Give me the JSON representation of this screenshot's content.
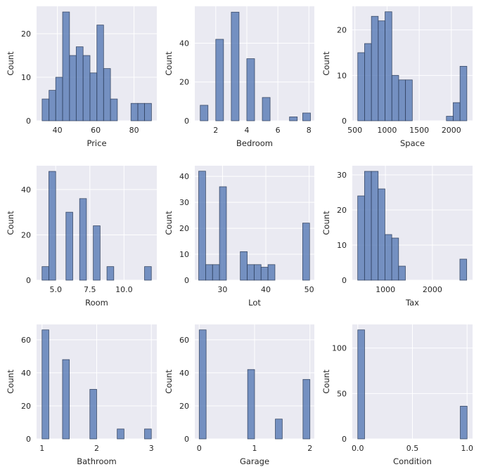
{
  "figure": {
    "background": "#ffffff",
    "axes_background": "#eaeaf2",
    "grid_color": "#ffffff",
    "bar_color": "#4c72b0",
    "bar_edge_color": "#2f3f5c"
  },
  "chart_data": [
    {
      "type": "bar",
      "xlabel": "Price",
      "ylabel": "Count",
      "xlim": [
        29.1,
        91.9
      ],
      "ylim": [
        0,
        26.3
      ],
      "xticks": [
        40,
        60,
        80
      ],
      "xtick_labels": [
        "40",
        "60",
        "80"
      ],
      "yticks": [
        0,
        10,
        20
      ],
      "ytick_labels": [
        "0",
        "10",
        "20"
      ],
      "bins": [
        {
          "x0": 32.0,
          "x1": 35.6,
          "count": 5
        },
        {
          "x0": 35.6,
          "x1": 39.1,
          "count": 7
        },
        {
          "x0": 39.1,
          "x1": 42.7,
          "count": 10
        },
        {
          "x0": 42.7,
          "x1": 46.3,
          "count": 25
        },
        {
          "x0": 46.3,
          "x1": 49.8,
          "count": 15
        },
        {
          "x0": 49.8,
          "x1": 53.4,
          "count": 17
        },
        {
          "x0": 53.4,
          "x1": 57.0,
          "count": 15
        },
        {
          "x0": 57.0,
          "x1": 60.6,
          "count": 11
        },
        {
          "x0": 60.6,
          "x1": 64.1,
          "count": 22
        },
        {
          "x0": 64.1,
          "x1": 67.7,
          "count": 12
        },
        {
          "x0": 67.7,
          "x1": 71.3,
          "count": 5
        },
        {
          "x0": 71.3,
          "x1": 74.8,
          "count": 0
        },
        {
          "x0": 74.8,
          "x1": 78.4,
          "count": 0
        },
        {
          "x0": 78.4,
          "x1": 82.0,
          "count": 4
        },
        {
          "x0": 82.0,
          "x1": 85.5,
          "count": 4
        },
        {
          "x0": 85.5,
          "x1": 89.1,
          "count": 4
        }
      ]
    },
    {
      "type": "bar",
      "xlabel": "Bedroom",
      "ylabel": "Count",
      "xlim": [
        0.65,
        8.35
      ],
      "ylim": [
        0,
        59
      ],
      "xticks": [
        2,
        4,
        6,
        8
      ],
      "xtick_labels": [
        "2",
        "4",
        "6",
        "8"
      ],
      "yticks": [
        0,
        20,
        40
      ],
      "ytick_labels": [
        "0",
        "20",
        "40"
      ],
      "bins": [
        {
          "x0": 1.0,
          "x1": 1.5,
          "count": 8
        },
        {
          "x0": 2.0,
          "x1": 2.5,
          "count": 42
        },
        {
          "x0": 3.0,
          "x1": 3.5,
          "count": 56
        },
        {
          "x0": 4.0,
          "x1": 4.5,
          "count": 32
        },
        {
          "x0": 5.0,
          "x1": 5.5,
          "count": 12
        },
        {
          "x0": 6.75,
          "x1": 7.25,
          "count": 2
        },
        {
          "x0": 7.6,
          "x1": 8.1,
          "count": 4
        }
      ]
    },
    {
      "type": "bar",
      "xlabel": "Space",
      "ylabel": "Count",
      "xlim": [
        460,
        2330
      ],
      "ylim": [
        0,
        25.2
      ],
      "xticks": [
        500,
        1000,
        1500,
        2000
      ],
      "xtick_labels": [
        "500",
        "1000",
        "1500",
        "2000"
      ],
      "yticks": [
        0,
        10,
        20
      ],
      "ytick_labels": [
        "0",
        "10",
        "20"
      ],
      "bins": [
        {
          "x0": 545,
          "x1": 651,
          "count": 15
        },
        {
          "x0": 651,
          "x1": 757,
          "count": 17
        },
        {
          "x0": 757,
          "x1": 863,
          "count": 23
        },
        {
          "x0": 863,
          "x1": 969,
          "count": 22
        },
        {
          "x0": 969,
          "x1": 1075,
          "count": 24
        },
        {
          "x0": 1075,
          "x1": 1181,
          "count": 10
        },
        {
          "x0": 1181,
          "x1": 1287,
          "count": 9
        },
        {
          "x0": 1287,
          "x1": 1393,
          "count": 9
        },
        {
          "x0": 1393,
          "x1": 1499,
          "count": 0
        },
        {
          "x0": 1499,
          "x1": 1605,
          "count": 0
        },
        {
          "x0": 1605,
          "x1": 1711,
          "count": 0
        },
        {
          "x0": 1711,
          "x1": 1817,
          "count": 0
        },
        {
          "x0": 1817,
          "x1": 1923,
          "count": 0
        },
        {
          "x0": 1923,
          "x1": 2029,
          "count": 1
        },
        {
          "x0": 2029,
          "x1": 2135,
          "count": 4
        },
        {
          "x0": 2135,
          "x1": 2241,
          "count": 12
        }
      ]
    },
    {
      "type": "bar",
      "xlabel": "Room",
      "ylabel": "Count",
      "xlim": [
        3.6,
        12.4
      ],
      "ylim": [
        0,
        50.5
      ],
      "xticks": [
        5.0,
        7.5,
        10.0
      ],
      "xtick_labels": [
        "5.0",
        "7.5",
        "10.0"
      ],
      "yticks": [
        0,
        20,
        40
      ],
      "ytick_labels": [
        "0",
        "20",
        "40"
      ],
      "bins": [
        {
          "x0": 4.0,
          "x1": 4.5,
          "count": 6
        },
        {
          "x0": 4.5,
          "x1": 5.0,
          "count": 48
        },
        {
          "x0": 5.75,
          "x1": 6.25,
          "count": 30
        },
        {
          "x0": 6.75,
          "x1": 7.25,
          "count": 36
        },
        {
          "x0": 7.75,
          "x1": 8.25,
          "count": 24
        },
        {
          "x0": 8.75,
          "x1": 9.25,
          "count": 6
        },
        {
          "x0": 11.5,
          "x1": 12.0,
          "count": 6
        }
      ]
    },
    {
      "type": "bar",
      "xlabel": "Lot",
      "ylabel": "Count",
      "xlim": [
        23.6,
        51.2
      ],
      "ylim": [
        0,
        44.1
      ],
      "xticks": [
        30,
        40,
        50
      ],
      "xtick_labels": [
        "30",
        "40",
        "50"
      ],
      "yticks": [
        0,
        10,
        20,
        30,
        40
      ],
      "ytick_labels": [
        "0",
        "10",
        "20",
        "30",
        "40"
      ],
      "bins": [
        {
          "x0": 24.5,
          "x1": 26.1,
          "count": 42
        },
        {
          "x0": 26.1,
          "x1": 27.7,
          "count": 6
        },
        {
          "x0": 27.7,
          "x1": 29.3,
          "count": 6
        },
        {
          "x0": 29.3,
          "x1": 30.9,
          "count": 36
        },
        {
          "x0": 30.9,
          "x1": 32.5,
          "count": 0
        },
        {
          "x0": 32.5,
          "x1": 34.1,
          "count": 0
        },
        {
          "x0": 34.1,
          "x1": 35.7,
          "count": 11
        },
        {
          "x0": 35.7,
          "x1": 37.3,
          "count": 6
        },
        {
          "x0": 37.3,
          "x1": 38.9,
          "count": 6
        },
        {
          "x0": 38.9,
          "x1": 40.5,
          "count": 5
        },
        {
          "x0": 40.5,
          "x1": 42.1,
          "count": 6
        },
        {
          "x0": 42.1,
          "x1": 43.7,
          "count": 0
        },
        {
          "x0": 43.7,
          "x1": 45.3,
          "count": 0
        },
        {
          "x0": 45.3,
          "x1": 46.9,
          "count": 0
        },
        {
          "x0": 46.9,
          "x1": 48.5,
          "count": 0
        },
        {
          "x0": 48.5,
          "x1": 50.1,
          "count": 22
        }
      ]
    },
    {
      "type": "bar",
      "xlabel": "Tax",
      "ylabel": "Count",
      "xlim": [
        295,
        2855
      ],
      "ylim": [
        0,
        32.6
      ],
      "xticks": [
        1000,
        2000
      ],
      "xtick_labels": [
        "1000",
        "2000"
      ],
      "yticks": [
        0,
        10,
        20,
        30
      ],
      "ytick_labels": [
        "0",
        "10",
        "20",
        "30"
      ],
      "bins": [
        {
          "x0": 410,
          "x1": 555,
          "count": 24
        },
        {
          "x0": 555,
          "x1": 700,
          "count": 31
        },
        {
          "x0": 700,
          "x1": 845,
          "count": 31
        },
        {
          "x0": 845,
          "x1": 990,
          "count": 26
        },
        {
          "x0": 990,
          "x1": 1135,
          "count": 13
        },
        {
          "x0": 1135,
          "x1": 1280,
          "count": 12
        },
        {
          "x0": 1280,
          "x1": 1425,
          "count": 4
        },
        {
          "x0": 1425,
          "x1": 1570,
          "count": 0
        },
        {
          "x0": 1570,
          "x1": 1715,
          "count": 0
        },
        {
          "x0": 1715,
          "x1": 1860,
          "count": 0
        },
        {
          "x0": 1860,
          "x1": 2005,
          "count": 0
        },
        {
          "x0": 2005,
          "x1": 2150,
          "count": 0
        },
        {
          "x0": 2150,
          "x1": 2295,
          "count": 0
        },
        {
          "x0": 2295,
          "x1": 2440,
          "count": 0
        },
        {
          "x0": 2440,
          "x1": 2585,
          "count": 0
        },
        {
          "x0": 2585,
          "x1": 2730,
          "count": 6
        }
      ]
    },
    {
      "type": "bar",
      "xlabel": "Bathroom",
      "ylabel": "Count",
      "xlim": [
        0.9,
        3.1
      ],
      "ylim": [
        0,
        69.3
      ],
      "xticks": [
        1,
        2,
        3
      ],
      "xtick_labels": [
        "1",
        "2",
        "3"
      ],
      "yticks": [
        0,
        20,
        40,
        60
      ],
      "ytick_labels": [
        "0",
        "20",
        "40",
        "60"
      ],
      "bins": [
        {
          "x0": 1.0,
          "x1": 1.125,
          "count": 66
        },
        {
          "x0": 1.375,
          "x1": 1.5,
          "count": 48
        },
        {
          "x0": 1.875,
          "x1": 2.0,
          "count": 30
        },
        {
          "x0": 2.375,
          "x1": 2.5,
          "count": 6
        },
        {
          "x0": 2.875,
          "x1": 3.0,
          "count": 6
        }
      ]
    },
    {
      "type": "bar",
      "xlabel": "Garage",
      "ylabel": "Count",
      "xlim": [
        -0.08,
        2.08
      ],
      "ylim": [
        0,
        69.3
      ],
      "xticks": [
        0,
        1,
        2
      ],
      "xtick_labels": [
        "0",
        "1",
        "2"
      ],
      "yticks": [
        0,
        20,
        40,
        60
      ],
      "ytick_labels": [
        "0",
        "20",
        "40",
        "60"
      ],
      "bins": [
        {
          "x0": 0.0,
          "x1": 0.125,
          "count": 66
        },
        {
          "x0": 0.875,
          "x1": 1.0,
          "count": 42
        },
        {
          "x0": 1.375,
          "x1": 1.5,
          "count": 12
        },
        {
          "x0": 1.875,
          "x1": 2.0,
          "count": 36
        }
      ]
    },
    {
      "type": "bar",
      "xlabel": "Condition",
      "ylabel": "Count",
      "xlim": [
        -0.05,
        1.05
      ],
      "ylim": [
        0,
        126
      ],
      "xticks": [
        0.0,
        0.5,
        1.0
      ],
      "xtick_labels": [
        "0.0",
        "0.5",
        "1.0"
      ],
      "yticks": [
        0,
        50,
        100
      ],
      "ytick_labels": [
        "0",
        "50",
        "100"
      ],
      "bins": [
        {
          "x0": 0.0,
          "x1": 0.0625,
          "count": 120
        },
        {
          "x0": 0.9375,
          "x1": 1.0,
          "count": 36
        }
      ]
    }
  ]
}
